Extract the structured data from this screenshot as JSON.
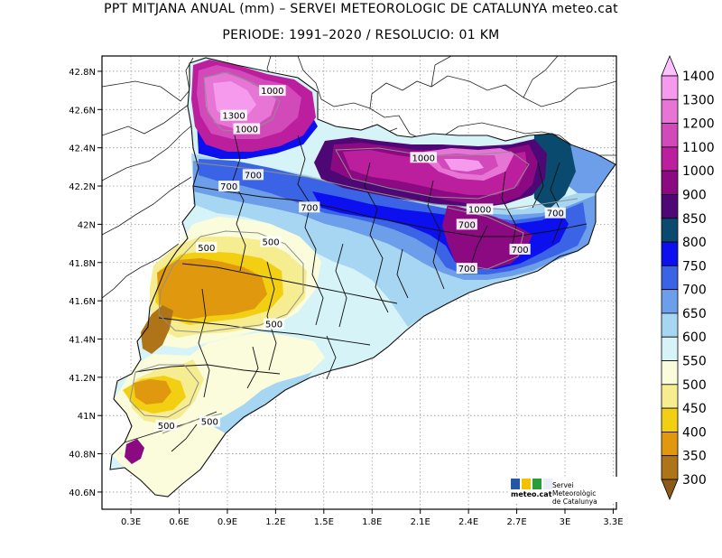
{
  "title": {
    "line1": "PPT MITJANA ANUAL (mm) – SERVEI METEOROLOGIC DE CATALUNYA meteo.cat",
    "line2": "PERIODE: 1991–2020 / RESOLUCIO: 01 KM"
  },
  "axes": {
    "x_ticks": [
      "0.3E",
      "0.6E",
      "0.9E",
      "1.2E",
      "1.5E",
      "1.8E",
      "2.1E",
      "2.4E",
      "2.7E",
      "3E",
      "3.3E"
    ],
    "y_ticks": [
      "42.8N",
      "42.6N",
      "42.4N",
      "42.2N",
      "42N",
      "41.8N",
      "41.6N",
      "41.4N",
      "41.2N",
      "41N",
      "40.8N",
      "40.6N"
    ],
    "x_range": [
      0.12,
      3.32
    ],
    "y_range": [
      40.51,
      42.88
    ]
  },
  "colorbar": {
    "levels": [
      "1400",
      "1300",
      "1200",
      "1100",
      "1000",
      "900",
      "850",
      "800",
      "750",
      "700",
      "650",
      "600",
      "550",
      "500",
      "450",
      "400",
      "350",
      "300"
    ],
    "colors": [
      "#ffc2ff",
      "#f59aed",
      "#e775d5",
      "#d24aba",
      "#bc1f9e",
      "#8b0a82",
      "#4e0876",
      "#0a4a6e",
      "#0c10ee",
      "#3b63e6",
      "#6d9ee9",
      "#a7d6f2",
      "#d6f3f8",
      "#fafcdc",
      "#f6ec90",
      "#f2cf12",
      "#e0990e",
      "#ae7417",
      "#8a5b19"
    ]
  },
  "map": {
    "contour_labels": [
      {
        "text": "1000",
        "lon": 1.18,
        "lat": 42.7
      },
      {
        "text": "1300",
        "lon": 0.94,
        "lat": 42.57
      },
      {
        "text": "1000",
        "lon": 1.02,
        "lat": 42.5
      },
      {
        "text": "1000",
        "lon": 2.12,
        "lat": 42.35
      },
      {
        "text": "700",
        "lon": 1.06,
        "lat": 42.26
      },
      {
        "text": "700",
        "lon": 0.91,
        "lat": 42.2
      },
      {
        "text": "700",
        "lon": 1.41,
        "lat": 42.09
      },
      {
        "text": "1000",
        "lon": 2.47,
        "lat": 42.08
      },
      {
        "text": "700",
        "lon": 2.39,
        "lat": 42.0
      },
      {
        "text": "700",
        "lon": 2.94,
        "lat": 42.06
      },
      {
        "text": "700",
        "lon": 2.72,
        "lat": 41.87
      },
      {
        "text": "700",
        "lon": 2.39,
        "lat": 41.77
      },
      {
        "text": "500",
        "lon": 0.77,
        "lat": 41.88
      },
      {
        "text": "500",
        "lon": 1.17,
        "lat": 41.91
      },
      {
        "text": "500",
        "lon": 1.19,
        "lat": 41.48
      },
      {
        "text": "500",
        "lon": 0.52,
        "lat": 40.95
      },
      {
        "text": "500",
        "lon": 0.79,
        "lat": 40.97
      }
    ]
  },
  "logo": {
    "name": "meteo.cat",
    "org_line1": "Servei Meteorològic",
    "org_line2": "de Catalunya",
    "icon_colors": [
      "#2457a6",
      "#f2c200",
      "#2a9d3a",
      "#e8eef6"
    ]
  }
}
